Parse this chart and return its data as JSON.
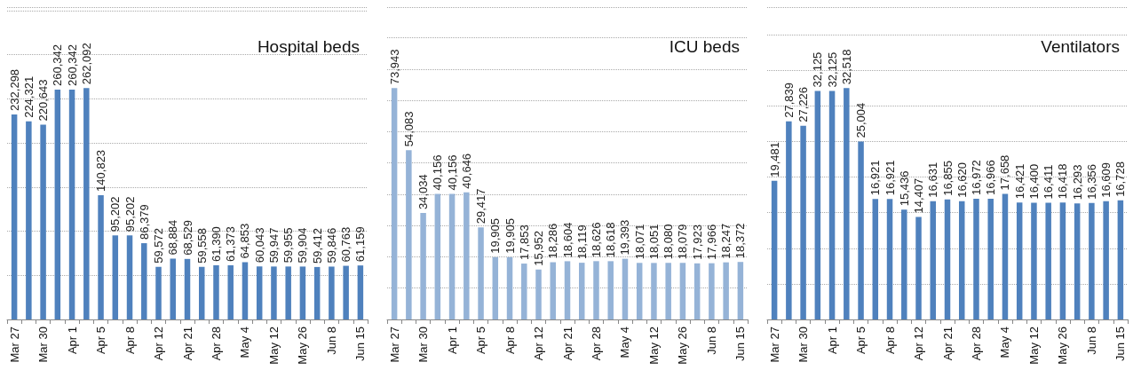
{
  "chart_data": [
    {
      "type": "bar",
      "title": "Hospital beds",
      "color": "#4f81bd",
      "grid": "y",
      "tick_labels": "x",
      "categories": [
        "Mar 27",
        null,
        "Mar 30",
        null,
        "Apr 1",
        null,
        "Apr 5",
        null,
        "Apr 8",
        null,
        "Apr 12",
        null,
        "Apr 21",
        null,
        "Apr 28",
        null,
        "May 4",
        null,
        "May 12",
        null,
        "May 26",
        null,
        "Jun 8",
        null,
        "Jun 15"
      ],
      "values": [
        232298,
        224321,
        220643,
        260342,
        260342,
        262092,
        140823,
        95202,
        95202,
        86379,
        59572,
        68884,
        68529,
        59558,
        61390,
        61373,
        64853,
        60043,
        59947,
        59955,
        59904,
        59412,
        59846,
        60763,
        61159
      ],
      "value_labels": [
        "232,298",
        "224,321",
        "220,643",
        "260,342",
        "260,342",
        "262,092",
        "140,823",
        "95,202",
        "95,202",
        "86,379",
        "59,572",
        "68,884",
        "68,529",
        "59,558",
        "61,390",
        "61,373",
        "64,853",
        "60,043",
        "59,947",
        "59,955",
        "59,904",
        "59,412",
        "59,846",
        "60,763",
        "61,159"
      ]
    },
    {
      "type": "bar",
      "title": "ICU beds",
      "color": "#95b3d7",
      "grid": "y",
      "tick_labels": "x",
      "categories": [
        "Mar 27",
        null,
        "Mar 30",
        null,
        "Apr 1",
        null,
        "Apr 5",
        null,
        "Apr 8",
        null,
        "Apr 12",
        null,
        "Apr 21",
        null,
        "Apr 28",
        null,
        "May 4",
        null,
        "May 12",
        null,
        "May 26",
        null,
        "Jun 8",
        null,
        "Jun 15"
      ],
      "values": [
        73943,
        54083,
        34034,
        40156,
        40156,
        40646,
        29417,
        19905,
        19905,
        17853,
        15952,
        18286,
        18604,
        18119,
        18626,
        18618,
        19393,
        18071,
        18051,
        18080,
        18079,
        17923,
        17966,
        18247,
        18372
      ],
      "value_labels": [
        "73,943",
        "54,083",
        "34,034",
        "40,156",
        "40,156",
        "40,646",
        "29,417",
        "19,905",
        "19,905",
        "17,853",
        "15,952",
        "18,286",
        "18,604",
        "18,119",
        "18,626",
        "18,618",
        "19,393",
        "18,071",
        "18,051",
        "18,080",
        "18,079",
        "17,923",
        "17,966",
        "18,247",
        "18,372"
      ]
    },
    {
      "type": "bar",
      "title": "Ventilators",
      "color": "#4f81bd",
      "grid": "y",
      "tick_labels": "x",
      "categories": [
        "Mar 27",
        null,
        "Mar 30",
        null,
        "Apr 1",
        null,
        "Apr 5",
        null,
        "Apr 8",
        null,
        "Apr 12",
        null,
        "Apr 21",
        null,
        "Apr 28",
        null,
        "May 4",
        null,
        "May 12",
        null,
        "May 26",
        null,
        "Jun 8",
        null,
        "Jun 15"
      ],
      "values": [
        19481,
        27839,
        27226,
        32125,
        32125,
        32518,
        25004,
        16921,
        16921,
        15436,
        14407,
        16631,
        16855,
        16620,
        16972,
        16966,
        17658,
        16421,
        16400,
        16411,
        16418,
        16293,
        16356,
        16609,
        16728
      ],
      "value_labels": [
        "19,481",
        "27,839",
        "27,226",
        "32,125",
        "32,125",
        "32,518",
        "25,004",
        "16,921",
        "16,921",
        "15,436",
        "14,407",
        "16,631",
        "16,855",
        "16,620",
        "16,972",
        "16,966",
        "17,658",
        "16,421",
        "16,400",
        "16,411",
        "16,418",
        "16,293",
        "16,356",
        "16,609",
        "16,728"
      ]
    }
  ]
}
